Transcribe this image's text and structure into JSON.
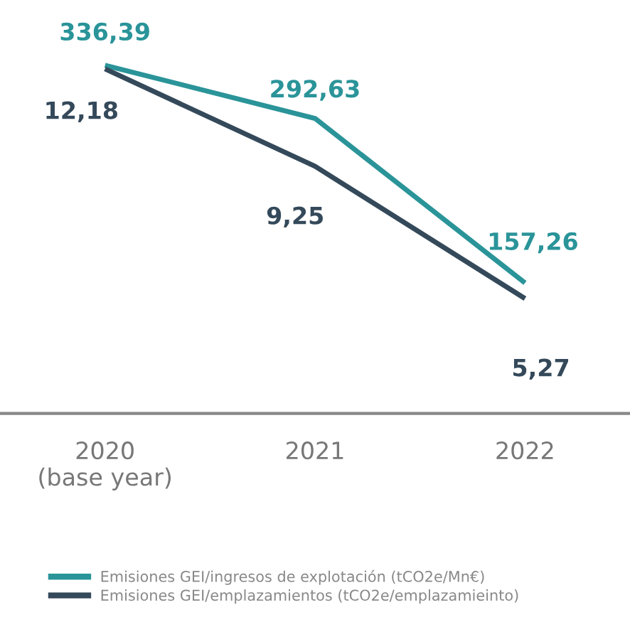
{
  "chart_data": {
    "type": "line",
    "categories": [
      "2020\n(base year)",
      "2021",
      "2022"
    ],
    "series": [
      {
        "name": "Emisiones GEI/ingresos de explotación (tCO2e/Mn€)",
        "color": "#2a9499",
        "values": [
          336.39,
          292.63,
          157.26
        ],
        "value_labels": [
          "336,39",
          "292,63",
          "157,26"
        ]
      },
      {
        "name": "Emisiones GEI/emplazamientos (tCO2e/emplazamieinto)",
        "color": "#34495a",
        "values": [
          12.18,
          9.25,
          5.27
        ],
        "value_labels": [
          "12,18",
          "9,25",
          "5,27"
        ],
        "axis": "y2"
      }
    ],
    "tick_labels": "x",
    "legend": "bottom",
    "grid": false,
    "marker": "none",
    "line_style": "solid"
  }
}
